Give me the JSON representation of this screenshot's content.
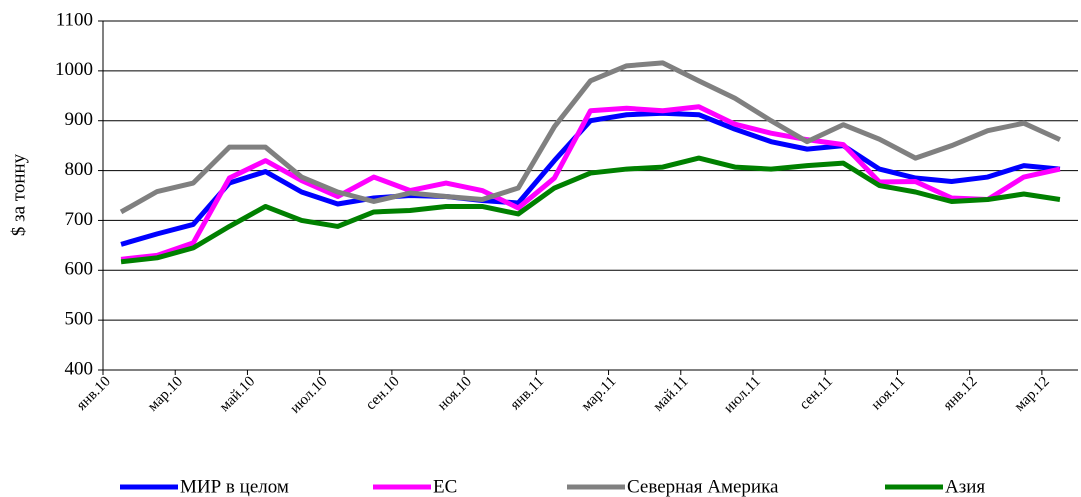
{
  "chart_data": {
    "type": "line",
    "y_label": "$ за тонну",
    "categories": [
      "янв.10",
      null,
      "мар.10",
      null,
      "май.10",
      null,
      "июл.10",
      null,
      "сен.10",
      null,
      "ноя.10",
      null,
      "янв.11",
      null,
      "мар.11",
      null,
      "май.11",
      null,
      "июл.11",
      null,
      "сен.11",
      null,
      "ноя.11",
      null,
      "янв.12",
      null,
      "мар.12"
    ],
    "ylim": [
      400,
      1100
    ],
    "yticks": [
      400,
      500,
      600,
      700,
      800,
      900,
      1000,
      1100
    ],
    "grid": true,
    "legend": "bottom",
    "series": [
      {
        "name": "МИР в целом",
        "color": "#0000ff",
        "values": [
          652,
          673,
          692,
          775,
          798,
          757,
          733,
          745,
          750,
          748,
          740,
          735,
          820,
          900,
          912,
          915,
          912,
          883,
          858,
          843,
          850,
          803,
          785,
          778,
          787,
          810,
          803
        ]
      },
      {
        "name": "ЕС",
        "color": "#ff00ff",
        "values": [
          622,
          630,
          655,
          785,
          820,
          780,
          748,
          787,
          760,
          775,
          760,
          725,
          785,
          920,
          925,
          920,
          928,
          893,
          875,
          862,
          852,
          777,
          778,
          745,
          742,
          787,
          803
        ]
      },
      {
        "name": "Северная Америка",
        "color": "#808080",
        "values": [
          717,
          758,
          775,
          847,
          847,
          787,
          757,
          738,
          755,
          748,
          742,
          765,
          888,
          980,
          1010,
          1016,
          980,
          945,
          900,
          858,
          892,
          863,
          825,
          850,
          880,
          895,
          862
        ]
      },
      {
        "name": "Азия",
        "color": "#008000",
        "values": [
          617,
          625,
          645,
          688,
          728,
          700,
          688,
          717,
          720,
          728,
          728,
          713,
          765,
          795,
          803,
          807,
          825,
          807,
          803,
          810,
          815,
          770,
          757,
          738,
          742,
          753,
          742
        ]
      }
    ]
  }
}
